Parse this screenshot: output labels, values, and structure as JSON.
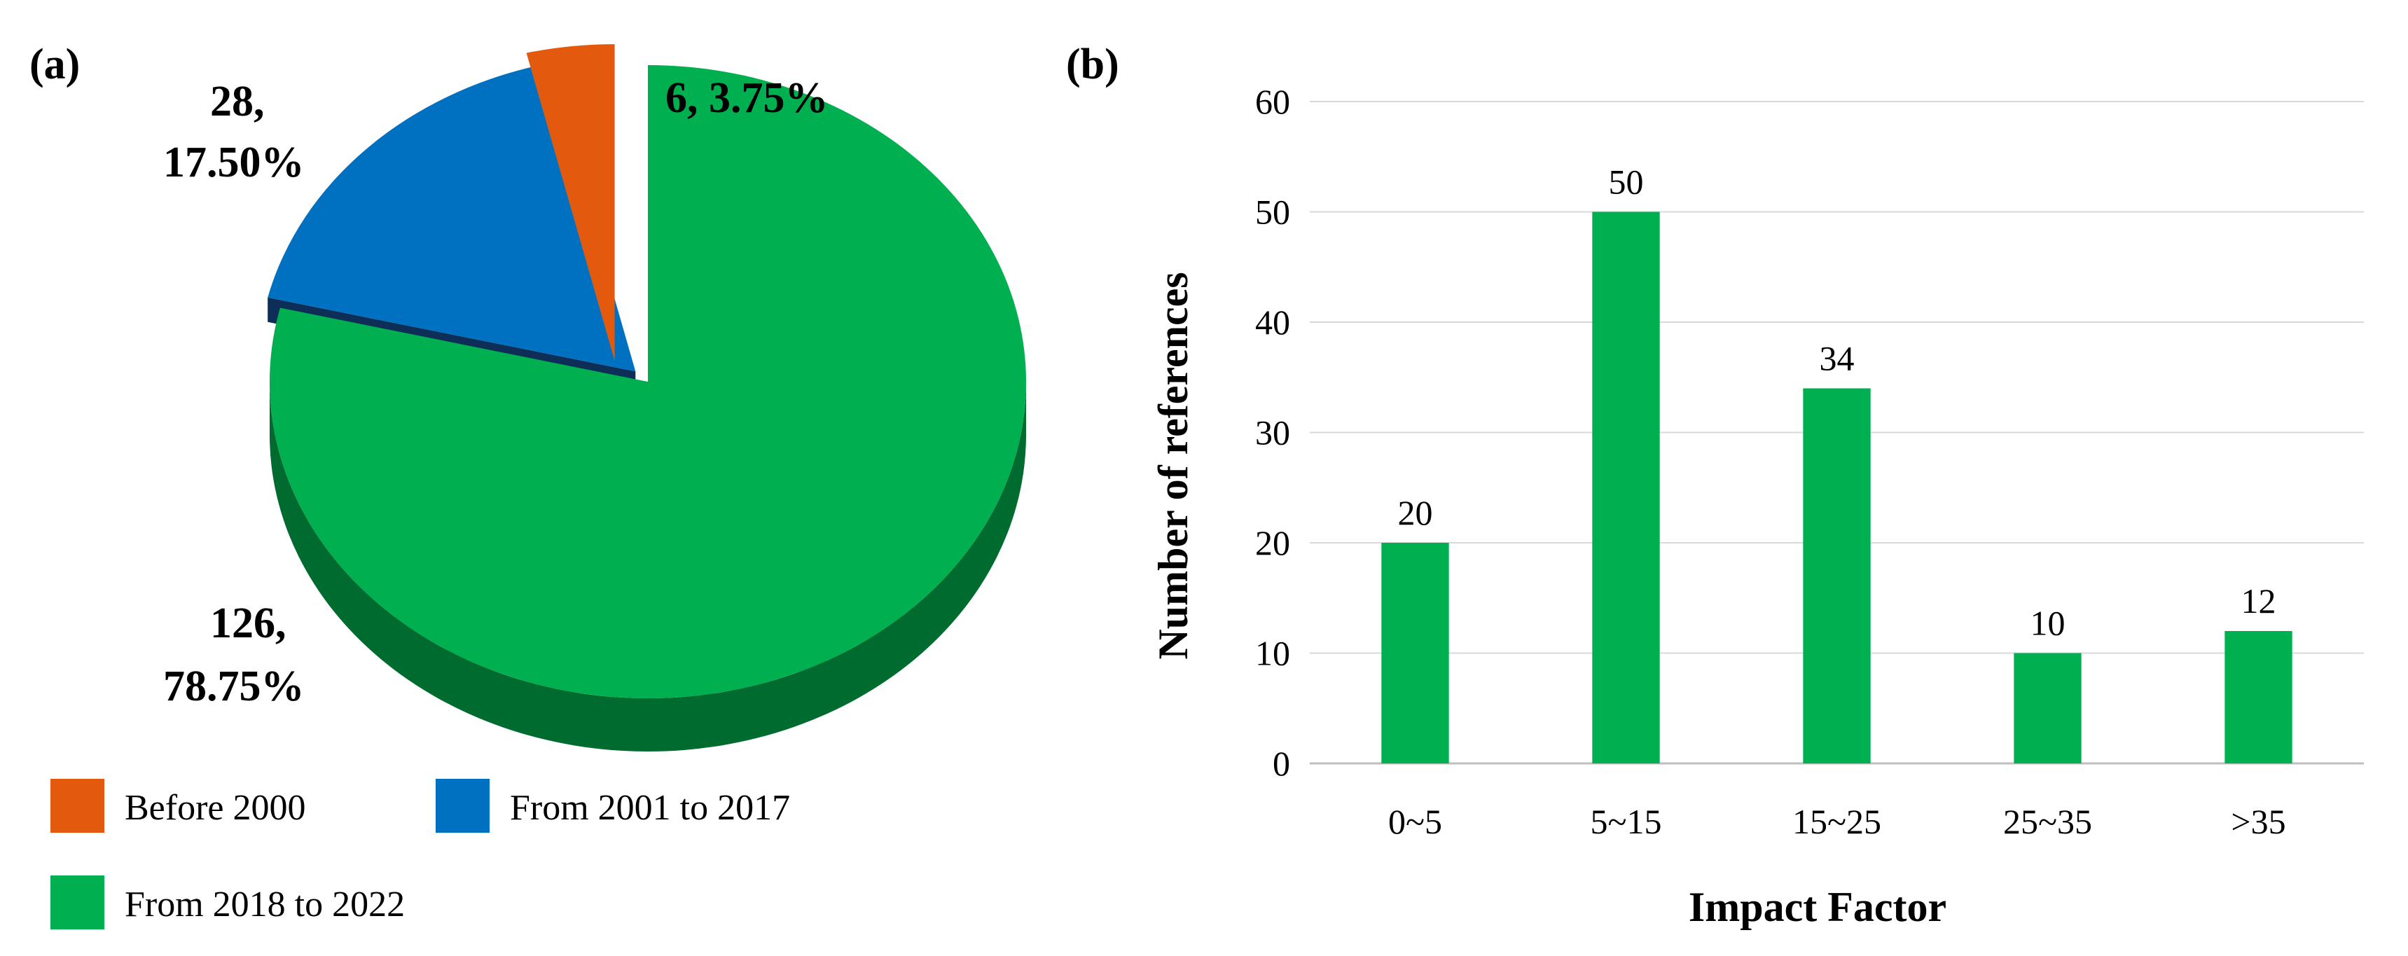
{
  "panels": {
    "a_label": "(a)",
    "b_label": "(b)"
  },
  "colors": {
    "before_2000": "#E35A0E",
    "from_2001_to_2017": "#0070C0",
    "from_2018_to_2022": "#00B050",
    "green_side": "#006B2E",
    "blue_side": "#0C2E57",
    "bar": "#00B050",
    "grid": "#D9D9D9"
  },
  "chart_data": [
    {
      "type": "pie",
      "title": "",
      "slices": [
        {
          "name": "Before 2000",
          "value": 6,
          "percent": "3.75%"
        },
        {
          "name": "From 2001 to 2017",
          "value": 28,
          "percent": "17.50%"
        },
        {
          "name": "From 2018 to 2022",
          "value": 126,
          "percent": "78.75%"
        }
      ],
      "labels": {
        "before_2000": "6, 3.75%",
        "from_2001_to_2017_line1": "28,",
        "from_2001_to_2017_line2": "17.50%",
        "from_2018_to_2022_line1": "126,",
        "from_2018_to_2022_line2": "78.75%"
      },
      "legend": [
        "Before 2000",
        "From 2001 to 2017",
        "From 2018 to 2022"
      ],
      "legend_position": "bottom"
    },
    {
      "type": "bar",
      "title": "",
      "categories": [
        "0~5",
        "5~15",
        "15~25",
        "25~35",
        ">35"
      ],
      "values": [
        20,
        50,
        34,
        10,
        12
      ],
      "xlabel": "Impact Factor",
      "ylabel": "Number of references",
      "ylim": [
        0,
        60
      ],
      "yticks": [
        0,
        10,
        20,
        30,
        40,
        50,
        60
      ],
      "grid": true
    }
  ]
}
